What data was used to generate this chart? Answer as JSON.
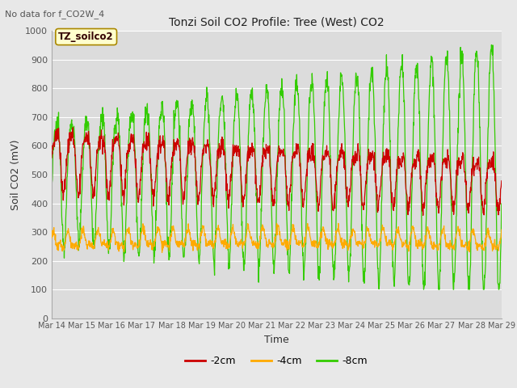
{
  "title": "Tonzi Soil CO2 Profile: Tree (West) CO2",
  "top_left_text": "No data for f_CO2W_4",
  "ylabel": "Soil CO2 (mV)",
  "xlabel": "Time",
  "annotation_box": "TZ_soilco2",
  "ylim": [
    0,
    1000
  ],
  "yticks": [
    0,
    100,
    200,
    300,
    400,
    500,
    600,
    700,
    800,
    900,
    1000
  ],
  "xtick_labels": [
    "Mar 14",
    "Mar 15",
    "Mar 16",
    "Mar 17",
    "Mar 18",
    "Mar 19",
    "Mar 20",
    "Mar 21",
    "Mar 22",
    "Mar 23",
    "Mar 24",
    "Mar 25",
    "Mar 26",
    "Mar 27",
    "Mar 28",
    "Mar 29"
  ],
  "legend_entries": [
    "-2cm",
    "-4cm",
    "-8cm"
  ],
  "legend_colors": [
    "#cc0000",
    "#ffaa00",
    "#33cc00"
  ],
  "bg_color": "#e8e8e8",
  "plot_bg_color": "#dcdcdc",
  "line_color_2cm": "#cc0000",
  "line_color_4cm": "#ffaa00",
  "line_color_8cm": "#33cc00",
  "n_days": 15,
  "n_points": 1440
}
